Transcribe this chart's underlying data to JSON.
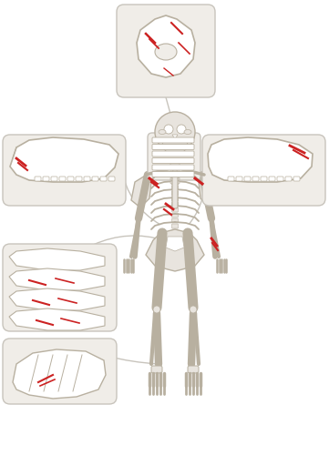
{
  "background_color": "#ffffff",
  "box_fill": "#f0ede8",
  "box_edge": "#c8c4bc",
  "bone_color": "#e8e4de",
  "bone_edge": "#b8b0a0",
  "red_mark": "#cc2222",
  "line_color": "#c8c4bc",
  "fig_width": 3.61,
  "fig_height": 5.0,
  "dpi": 100
}
